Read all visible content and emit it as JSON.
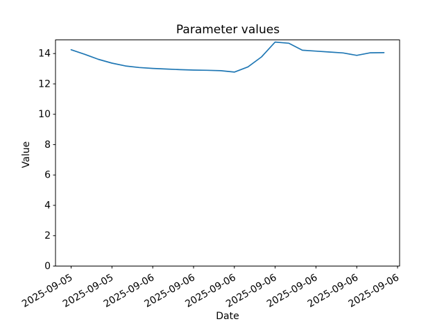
{
  "chart_data": {
    "type": "line",
    "title": "Parameter values",
    "xlabel": "Date",
    "ylabel": "Value",
    "line_color": "#1f77b4",
    "axis_color": "#000000",
    "background_color": "#ffffff",
    "legend": "none",
    "grid": false,
    "x_tick_labels": [
      "2025-09-05",
      "2025-09-05",
      "2025-09-06",
      "2025-09-06",
      "2025-09-06",
      "2025-09-06",
      "2025-09-06",
      "2025-09-06",
      "2025-09-06"
    ],
    "x_tick_hours": [
      0,
      3,
      6,
      9,
      12,
      15,
      18,
      21,
      24
    ],
    "x_tick_rotation_deg": 30,
    "y_tick_labels": [
      "0",
      "2",
      "4",
      "6",
      "8",
      "10",
      "12",
      "14"
    ],
    "y_ticks": [
      0,
      2,
      4,
      6,
      8,
      10,
      12,
      14
    ],
    "ylim": [
      0,
      14.9
    ],
    "xlim_hours": [
      -1.15,
      24.15
    ],
    "series": [
      {
        "name": "parameter",
        "x_hours": [
          0,
          1,
          2,
          3,
          4,
          5,
          6,
          7,
          8,
          9,
          10,
          11,
          12,
          13,
          14,
          15,
          16,
          17,
          18,
          19,
          20,
          21,
          22,
          23
        ],
        "values": [
          14.25,
          13.95,
          13.62,
          13.37,
          13.18,
          13.08,
          13.02,
          12.98,
          12.94,
          12.91,
          12.9,
          12.87,
          12.78,
          13.12,
          13.78,
          14.76,
          14.68,
          14.22,
          14.16,
          14.1,
          14.04,
          13.88,
          14.05,
          14.06
        ]
      }
    ]
  }
}
